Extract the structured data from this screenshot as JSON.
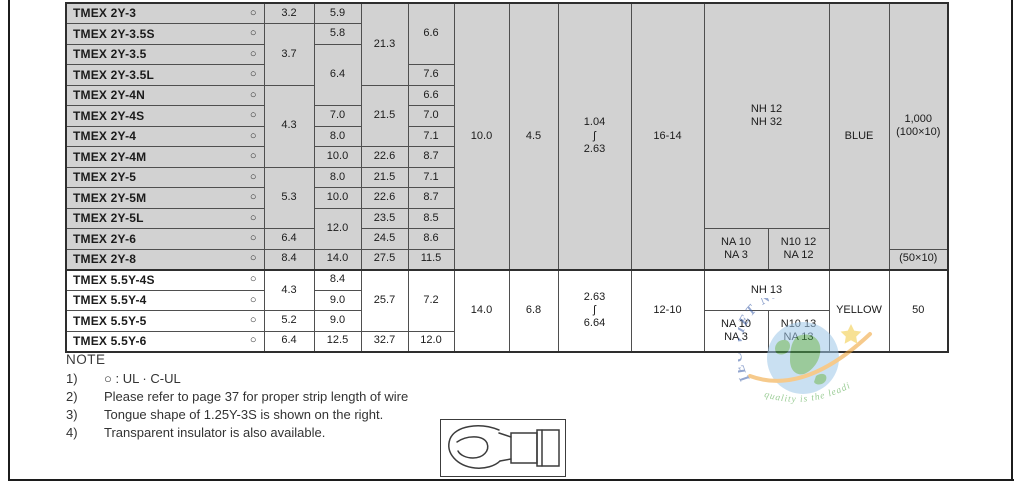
{
  "colors": {
    "block_gray": "#d2d2d2",
    "grid_border": "#4f4f4f",
    "watermark_blue": "#3b5ea8",
    "watermark_green": "#49a33f",
    "watermark_orange": "#f0a030",
    "star_yellow": "#f2c93e"
  },
  "table": {
    "cert_symbol": "○",
    "gray_block_last_row": 13,
    "cells": [
      [
        1,
        0,
        1,
        1,
        "TMEX 2Y-3"
      ],
      [
        1,
        1,
        1,
        1,
        "3.2"
      ],
      [
        1,
        2,
        1,
        1,
        "5.9"
      ],
      [
        1,
        3,
        4,
        1,
        "21.3"
      ],
      [
        1,
        4,
        3,
        1,
        "6.6"
      ],
      [
        1,
        5,
        13,
        1,
        "10.0"
      ],
      [
        1,
        6,
        13,
        1,
        "4.5"
      ],
      [
        1,
        7,
        13,
        1,
        "1.04\nʃ\n2.63"
      ],
      [
        1,
        8,
        13,
        1,
        "16-14"
      ],
      [
        1,
        9,
        11,
        2,
        "NH 12\nNH 32"
      ],
      [
        1,
        11,
        13,
        1,
        "BLUE"
      ],
      [
        1,
        12,
        12,
        1,
        "1,000\n(100×10)"
      ],
      [
        2,
        0,
        1,
        1,
        "TMEX 2Y-3.5S"
      ],
      [
        2,
        1,
        3,
        1,
        "3.7"
      ],
      [
        2,
        2,
        1,
        1,
        "5.8"
      ],
      [
        3,
        0,
        1,
        1,
        "TMEX 2Y-3.5"
      ],
      [
        3,
        2,
        3,
        1,
        "6.4"
      ],
      [
        4,
        0,
        1,
        1,
        "TMEX 2Y-3.5L"
      ],
      [
        4,
        4,
        1,
        1,
        "7.6"
      ],
      [
        5,
        0,
        1,
        1,
        "TMEX 2Y-4N"
      ],
      [
        5,
        1,
        4,
        1,
        "4.3"
      ],
      [
        5,
        3,
        3,
        1,
        "21.5"
      ],
      [
        5,
        4,
        1,
        1,
        "6.6"
      ],
      [
        6,
        0,
        1,
        1,
        "TMEX 2Y-4S"
      ],
      [
        6,
        2,
        1,
        1,
        "7.0"
      ],
      [
        6,
        4,
        1,
        1,
        "7.0"
      ],
      [
        7,
        0,
        1,
        1,
        "TMEX 2Y-4"
      ],
      [
        7,
        2,
        1,
        1,
        "8.0"
      ],
      [
        7,
        4,
        1,
        1,
        "7.1"
      ],
      [
        8,
        0,
        1,
        1,
        "TMEX 2Y-4M"
      ],
      [
        8,
        2,
        1,
        1,
        "10.0"
      ],
      [
        8,
        3,
        1,
        1,
        "22.6"
      ],
      [
        8,
        4,
        1,
        1,
        "8.7"
      ],
      [
        9,
        0,
        1,
        1,
        "TMEX 2Y-5"
      ],
      [
        9,
        1,
        3,
        1,
        "5.3"
      ],
      [
        9,
        2,
        1,
        1,
        "8.0"
      ],
      [
        9,
        3,
        1,
        1,
        "21.5"
      ],
      [
        9,
        4,
        1,
        1,
        "7.1"
      ],
      [
        10,
        0,
        1,
        1,
        "TMEX 2Y-5M"
      ],
      [
        10,
        2,
        1,
        1,
        "10.0"
      ],
      [
        10,
        3,
        1,
        1,
        "22.6"
      ],
      [
        10,
        4,
        1,
        1,
        "8.7"
      ],
      [
        11,
        0,
        1,
        1,
        "TMEX 2Y-5L"
      ],
      [
        11,
        2,
        2,
        1,
        "12.0"
      ],
      [
        11,
        3,
        1,
        1,
        "23.5"
      ],
      [
        11,
        4,
        1,
        1,
        "8.5"
      ],
      [
        12,
        0,
        1,
        1,
        "TMEX 2Y-6"
      ],
      [
        12,
        1,
        1,
        1,
        "6.4"
      ],
      [
        12,
        3,
        1,
        1,
        "24.5"
      ],
      [
        12,
        4,
        1,
        1,
        "8.6"
      ],
      [
        12,
        9,
        2,
        1,
        "NA 10\nNA 3"
      ],
      [
        12,
        10,
        2,
        1,
        "N10 12\nNA 12"
      ],
      [
        13,
        0,
        1,
        1,
        "TMEX 2Y-8"
      ],
      [
        13,
        1,
        1,
        1,
        "8.4"
      ],
      [
        13,
        2,
        1,
        1,
        "14.0"
      ],
      [
        13,
        3,
        1,
        1,
        "27.5"
      ],
      [
        13,
        4,
        1,
        1,
        "11.5"
      ],
      [
        13,
        12,
        1,
        1,
        "(50×10)"
      ],
      [
        14,
        0,
        1,
        1,
        "TMEX 5.5Y-4S"
      ],
      [
        14,
        1,
        2,
        1,
        "4.3"
      ],
      [
        14,
        2,
        1,
        1,
        "8.4"
      ],
      [
        14,
        3,
        3,
        1,
        "25.7"
      ],
      [
        14,
        4,
        3,
        1,
        "7.2"
      ],
      [
        14,
        5,
        4,
        1,
        "14.0"
      ],
      [
        14,
        6,
        4,
        1,
        "6.8"
      ],
      [
        14,
        7,
        4,
        1,
        "2.63\nʃ\n6.64"
      ],
      [
        14,
        8,
        4,
        1,
        "12-10"
      ],
      [
        14,
        9,
        2,
        2,
        "NH 13"
      ],
      [
        14,
        11,
        4,
        1,
        "YELLOW"
      ],
      [
        14,
        12,
        4,
        1,
        "50"
      ],
      [
        15,
        0,
        1,
        1,
        "TMEX 5.5Y-4"
      ],
      [
        15,
        2,
        1,
        1,
        "9.0"
      ],
      [
        16,
        0,
        1,
        1,
        "TMEX 5.5Y-5"
      ],
      [
        16,
        1,
        1,
        1,
        "5.2"
      ],
      [
        16,
        2,
        1,
        1,
        "9.0"
      ],
      [
        16,
        9,
        2,
        1,
        "NA 10\nNA 3"
      ],
      [
        16,
        10,
        2,
        1,
        "N10 13\nNA 13"
      ],
      [
        17,
        0,
        1,
        1,
        "TMEX 5.5Y-6"
      ],
      [
        17,
        1,
        1,
        1,
        "6.4"
      ],
      [
        17,
        2,
        1,
        1,
        "12.5"
      ],
      [
        17,
        3,
        1,
        1,
        "32.7"
      ],
      [
        17,
        4,
        1,
        1,
        "12.0"
      ]
    ]
  },
  "notes": {
    "title": "NOTE",
    "items": [
      {
        "num": "1)",
        "text": "○ : UL · C-UL"
      },
      {
        "num": "2)",
        "text": "Please refer to page 37 for proper strip length of wire"
      },
      {
        "num": "3)",
        "text": "Tongue shape of 1.25Y-3S is shown on the right."
      },
      {
        "num": "4)",
        "text": "Transparent insulator is also available."
      }
    ]
  },
  "watermark": {
    "arc_text": "IEC VIET NAM",
    "sub_text": "quality is the leading"
  }
}
